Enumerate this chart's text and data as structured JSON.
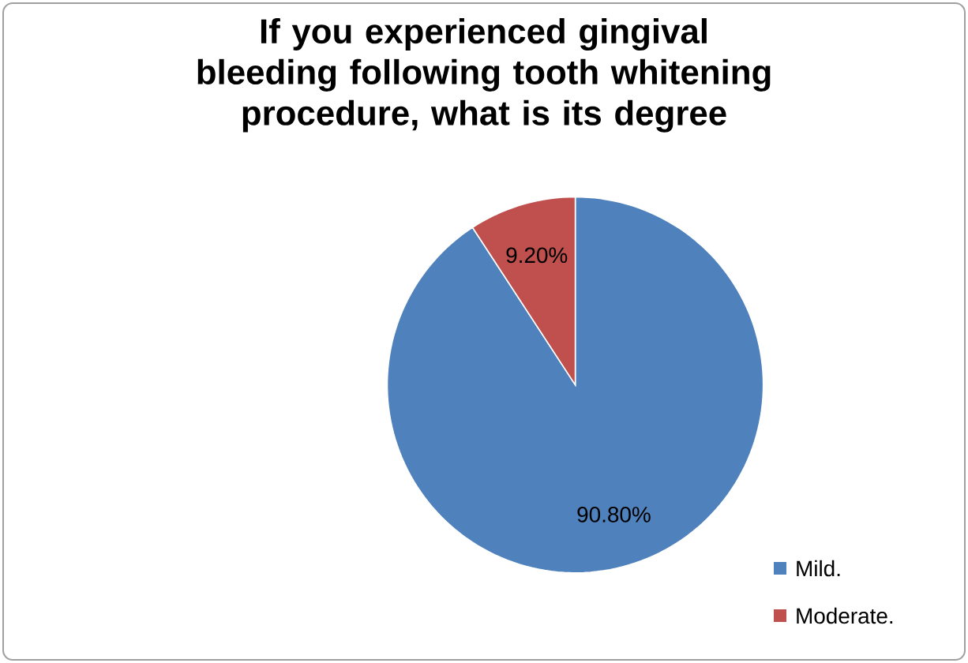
{
  "chart_data": {
    "type": "pie",
    "title": "If you experienced gingival  bleeding following tooth whitening procedure, what is its degree",
    "categories": [
      "Mild.",
      "Moderate."
    ],
    "values": [
      90.8,
      9.2
    ],
    "colors": [
      "#4f81bd",
      "#c0504d"
    ],
    "value_labels": [
      "90.80%",
      "9.20%"
    ],
    "legend": "bottom right"
  }
}
